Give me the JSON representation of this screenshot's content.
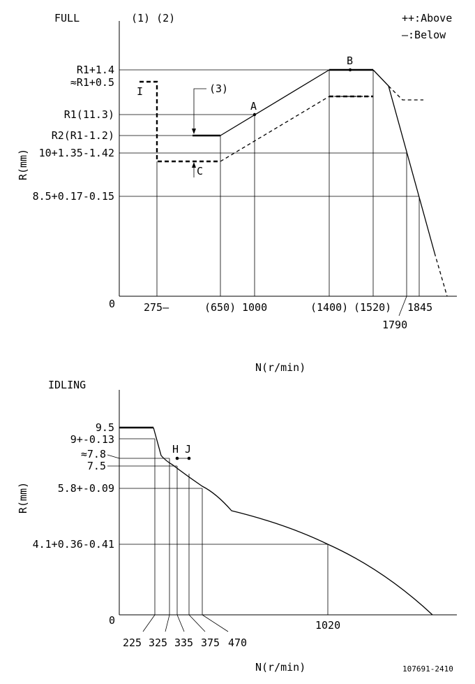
{
  "full": {
    "title": "FULL",
    "notes": "(1) (2)",
    "legend": {
      "above": "++:Above",
      "below": "—:Below"
    },
    "y_axis_label": "R(mm)",
    "x_axis_label": "N(r/min)",
    "origin": "0",
    "y_labels": {
      "r1_plus": "R1+1.4",
      "r1_approx": "≈R1+0.5",
      "r1": "R1(11.3)",
      "r2": "R2(R1-1.2)",
      "ten": "10+1.35-1.42",
      "eight_five": "8.5+0.17-0.15"
    },
    "x_labels": {
      "n275": "275—",
      "n650": "(650)",
      "n1000": "1000",
      "n1400": "(1400)",
      "n1520": "(1520)",
      "n1845": "1845",
      "n1790": "1790"
    },
    "points": {
      "a": "A",
      "b": "B",
      "c": "C",
      "i": "I",
      "callout": "(3)"
    }
  },
  "idling": {
    "title": "IDLING",
    "y_axis_label": "R(mm)",
    "x_axis_label": "N(r/min)",
    "origin": "0",
    "y_labels": {
      "y95": "9.5",
      "y9": "9+-0.13",
      "y78": "≈7.8",
      "y75": "7.5",
      "y58": "5.8+-0.09",
      "y41": "4.1+0.36-0.41"
    },
    "x_labels": {
      "n225": "225",
      "n325": "325",
      "n335": "335",
      "n375": "375",
      "n470": "470",
      "n1020": "1020"
    },
    "points": {
      "h": "H",
      "j": "J"
    }
  },
  "doc_code": "107691-2410"
}
